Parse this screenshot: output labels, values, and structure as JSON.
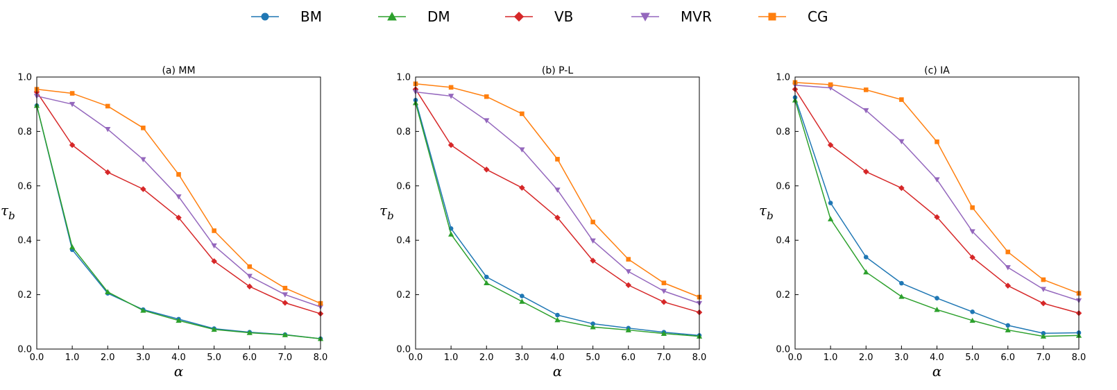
{
  "legend": {
    "location": "top-center",
    "items": [
      {
        "name": "BM",
        "color": "#1f77b4",
        "marker": "circle"
      },
      {
        "name": "DM",
        "color": "#2ca02c",
        "marker": "triangle-up"
      },
      {
        "name": "VB",
        "color": "#d62728",
        "marker": "diamond"
      },
      {
        "name": "MVR",
        "color": "#9467bd",
        "marker": "triangle-down"
      },
      {
        "name": "CG",
        "color": "#ff7f0e",
        "marker": "square"
      }
    ]
  },
  "chart_data": [
    {
      "type": "line",
      "title": "(a) MM",
      "xlabel": "α",
      "ylabel": "τ_b",
      "xlim": [
        0,
        8
      ],
      "ylim": [
        0,
        1.0
      ],
      "xticks": [
        "0.0",
        "1.0",
        "2.0",
        "3.0",
        "4.0",
        "5.0",
        "6.0",
        "7.0",
        "8.0"
      ],
      "yticks": [
        "0.0",
        "0.2",
        "0.4",
        "0.6",
        "0.8",
        "1.0"
      ],
      "grid": false,
      "x": [
        0,
        1,
        2,
        3,
        4,
        5,
        6,
        7,
        8
      ],
      "series": [
        {
          "name": "BM",
          "values": [
            0.895,
            0.365,
            0.205,
            0.145,
            0.11,
            0.075,
            0.062,
            0.053,
            0.038
          ]
        },
        {
          "name": "DM",
          "values": [
            0.895,
            0.375,
            0.21,
            0.142,
            0.105,
            0.072,
            0.06,
            0.052,
            0.038
          ]
        },
        {
          "name": "VB",
          "values": [
            0.945,
            0.75,
            0.65,
            0.588,
            0.483,
            0.323,
            0.23,
            0.17,
            0.13
          ]
        },
        {
          "name": "MVR",
          "values": [
            0.93,
            0.9,
            0.808,
            0.697,
            0.56,
            0.38,
            0.268,
            0.2,
            0.155
          ]
        },
        {
          "name": "CG",
          "values": [
            0.955,
            0.94,
            0.893,
            0.813,
            0.642,
            0.435,
            0.303,
            0.224,
            0.168
          ]
        }
      ]
    },
    {
      "type": "line",
      "title": "(b) P-L",
      "xlabel": "α",
      "ylabel": "τ_b",
      "xlim": [
        0,
        8
      ],
      "ylim": [
        0,
        1.0
      ],
      "xticks": [
        "0.0",
        "1.0",
        "2.0",
        "3.0",
        "4.0",
        "5.0",
        "6.0",
        "7.0",
        "8.0"
      ],
      "yticks": [
        "0.0",
        "0.2",
        "0.4",
        "0.6",
        "0.8",
        "1.0"
      ],
      "grid": false,
      "x": [
        0,
        1,
        2,
        3,
        4,
        5,
        6,
        7,
        8
      ],
      "series": [
        {
          "name": "BM",
          "values": [
            0.915,
            0.443,
            0.265,
            0.195,
            0.125,
            0.093,
            0.077,
            0.062,
            0.05
          ]
        },
        {
          "name": "DM",
          "values": [
            0.905,
            0.422,
            0.243,
            0.175,
            0.107,
            0.081,
            0.07,
            0.057,
            0.047
          ]
        },
        {
          "name": "VB",
          "values": [
            0.955,
            0.75,
            0.66,
            0.593,
            0.483,
            0.325,
            0.235,
            0.173,
            0.135
          ]
        },
        {
          "name": "MVR",
          "values": [
            0.945,
            0.93,
            0.84,
            0.733,
            0.585,
            0.398,
            0.285,
            0.213,
            0.168
          ]
        },
        {
          "name": "CG",
          "values": [
            0.975,
            0.962,
            0.928,
            0.865,
            0.698,
            0.467,
            0.33,
            0.243,
            0.191
          ]
        }
      ]
    },
    {
      "type": "line",
      "title": "(c) IA",
      "xlabel": "α",
      "ylabel": "τ_b",
      "xlim": [
        0,
        8
      ],
      "ylim": [
        0,
        1.0
      ],
      "xticks": [
        "0.0",
        "1.0",
        "2.0",
        "3.0",
        "4.0",
        "5.0",
        "6.0",
        "7.0",
        "8.0"
      ],
      "yticks": [
        "0.0",
        "0.2",
        "0.4",
        "0.6",
        "0.8",
        "1.0"
      ],
      "grid": false,
      "x": [
        0,
        1,
        2,
        3,
        4,
        5,
        6,
        7,
        8
      ],
      "series": [
        {
          "name": "BM",
          "values": [
            0.925,
            0.537,
            0.338,
            0.242,
            0.187,
            0.137,
            0.087,
            0.058,
            0.06
          ]
        },
        {
          "name": "DM",
          "values": [
            0.915,
            0.478,
            0.283,
            0.193,
            0.145,
            0.105,
            0.07,
            0.047,
            0.05
          ]
        },
        {
          "name": "VB",
          "values": [
            0.955,
            0.75,
            0.652,
            0.592,
            0.485,
            0.337,
            0.233,
            0.168,
            0.132
          ]
        },
        {
          "name": "MVR",
          "values": [
            0.97,
            0.96,
            0.877,
            0.763,
            0.623,
            0.432,
            0.3,
            0.22,
            0.178
          ]
        },
        {
          "name": "CG",
          "values": [
            0.98,
            0.972,
            0.953,
            0.917,
            0.762,
            0.52,
            0.357,
            0.255,
            0.205
          ]
        }
      ]
    }
  ]
}
